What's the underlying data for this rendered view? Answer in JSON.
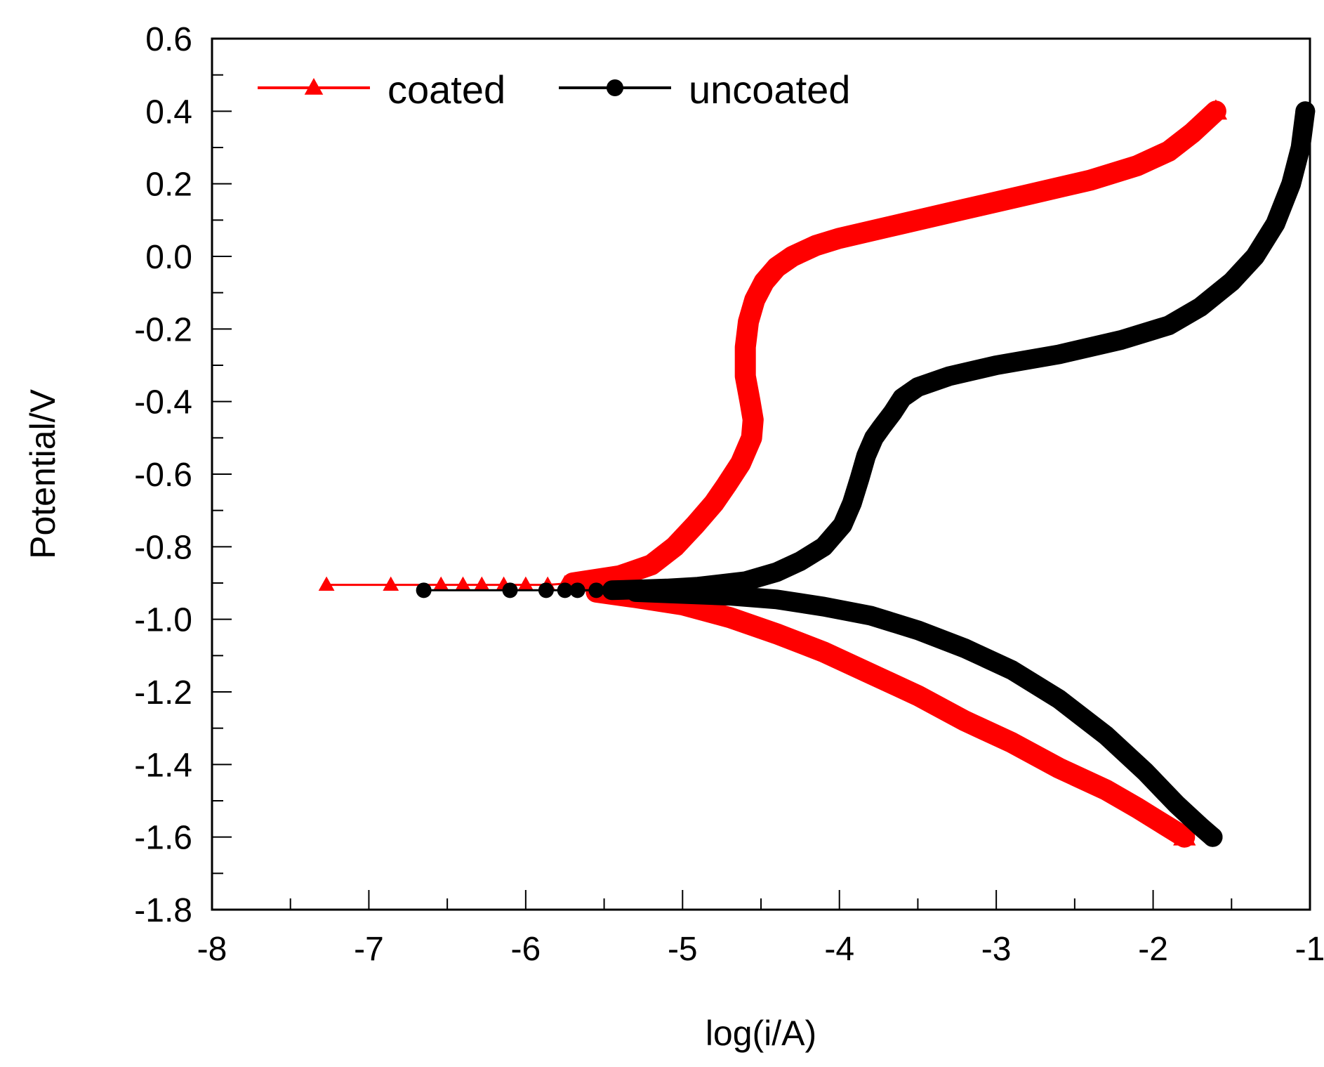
{
  "chart_data": {
    "type": "line",
    "title": "",
    "xlabel": "log(i/A)",
    "ylabel": "Potential/V",
    "xlim": [
      -8,
      -1
    ],
    "ylim": [
      -1.8,
      0.6
    ],
    "xticks": [
      -8,
      -7,
      -6,
      -5,
      -4,
      -3,
      -2,
      -1
    ],
    "xtick_labels": [
      "-8",
      "-7",
      "-6",
      "-5",
      "-4",
      "-3",
      "-2",
      "-1"
    ],
    "yticks": [
      0.6,
      0.4,
      0.2,
      0.0,
      -0.2,
      -0.4,
      -0.6,
      -0.8,
      -1.0,
      -1.2,
      -1.4,
      -1.6,
      -1.8
    ],
    "ytick_labels": [
      "0.6",
      "0.4",
      "0.2",
      "0.0",
      "-0.2",
      "-0.4",
      "-0.6",
      "-0.8",
      "-1.0",
      "-1.2",
      "-1.4",
      "-1.6",
      "-1.8"
    ],
    "grid": false,
    "legend_position": "top-left",
    "series": [
      {
        "name": "coated",
        "color": "#ff0000",
        "marker": "triangle",
        "anodic_x": [
          -7.27,
          -6.86,
          -6.54,
          -6.4,
          -6.28,
          -6.14,
          -6.0,
          -5.86,
          -5.7,
          -5.55,
          -5.4,
          -5.2,
          -5.05,
          -4.92,
          -4.8,
          -4.72,
          -4.63,
          -4.56,
          -4.55,
          -4.57,
          -4.6,
          -4.6,
          -4.58,
          -4.54,
          -4.48,
          -4.4,
          -4.3,
          -4.15,
          -4.0,
          -3.6,
          -3.2,
          -2.8,
          -2.4,
          -2.1,
          -1.9,
          -1.75,
          -1.6
        ],
        "anodic_y": [
          -0.905,
          -0.905,
          -0.905,
          -0.905,
          -0.905,
          -0.905,
          -0.905,
          -0.905,
          -0.9,
          -0.89,
          -0.88,
          -0.85,
          -0.8,
          -0.74,
          -0.68,
          -0.63,
          -0.57,
          -0.5,
          -0.45,
          -0.4,
          -0.33,
          -0.25,
          -0.18,
          -0.12,
          -0.07,
          -0.03,
          0.0,
          0.03,
          0.05,
          0.09,
          0.13,
          0.17,
          0.21,
          0.25,
          0.29,
          0.34,
          0.4
        ],
        "cathodic_x": [
          -5.55,
          -5.3,
          -5.0,
          -4.7,
          -4.4,
          -4.1,
          -3.8,
          -3.5,
          -3.2,
          -2.9,
          -2.6,
          -2.3,
          -2.1,
          -1.95,
          -1.8
        ],
        "cathodic_y": [
          -0.925,
          -0.94,
          -0.96,
          -0.995,
          -1.04,
          -1.09,
          -1.15,
          -1.21,
          -1.28,
          -1.34,
          -1.41,
          -1.47,
          -1.52,
          -1.56,
          -1.6
        ],
        "sparse_marker_x": [
          -7.27,
          -6.86,
          -6.54,
          -6.4,
          -6.28,
          -6.14,
          -6.0,
          -5.86,
          -5.75
        ]
      },
      {
        "name": "uncoated",
        "color": "#000000",
        "marker": "circle",
        "anodic_x": [
          -6.65,
          -6.1,
          -5.87,
          -5.75,
          -5.67,
          -5.55,
          -5.45,
          -5.3,
          -5.1,
          -4.9,
          -4.6,
          -4.4,
          -4.25,
          -4.1,
          -3.98,
          -3.92,
          -3.87,
          -3.83,
          -3.78,
          -3.73,
          -3.66,
          -3.6,
          -3.5,
          -3.3,
          -3.0,
          -2.6,
          -2.2,
          -1.9,
          -1.7,
          -1.5,
          -1.35,
          -1.22,
          -1.12,
          -1.06,
          -1.03
        ],
        "anodic_y": [
          -0.92,
          -0.92,
          -0.92,
          -0.92,
          -0.92,
          -0.92,
          -0.92,
          -0.918,
          -0.915,
          -0.91,
          -0.895,
          -0.87,
          -0.84,
          -0.8,
          -0.74,
          -0.68,
          -0.61,
          -0.55,
          -0.5,
          -0.47,
          -0.43,
          -0.39,
          -0.36,
          -0.33,
          -0.3,
          -0.27,
          -0.23,
          -0.19,
          -0.14,
          -0.07,
          0.0,
          0.09,
          0.2,
          0.3,
          0.4
        ],
        "cathodic_x": [
          -5.3,
          -5.0,
          -4.7,
          -4.4,
          -4.1,
          -3.8,
          -3.5,
          -3.2,
          -2.9,
          -2.6,
          -2.3,
          -2.05,
          -1.85,
          -1.7,
          -1.62
        ],
        "cathodic_y": [
          -0.925,
          -0.93,
          -0.935,
          -0.945,
          -0.965,
          -0.99,
          -1.03,
          -1.08,
          -1.14,
          -1.22,
          -1.32,
          -1.42,
          -1.51,
          -1.57,
          -1.6
        ],
        "sparse_marker_x": [
          -6.65,
          -6.1,
          -5.87,
          -5.75,
          -5.67,
          -5.55,
          -5.45
        ]
      }
    ]
  }
}
